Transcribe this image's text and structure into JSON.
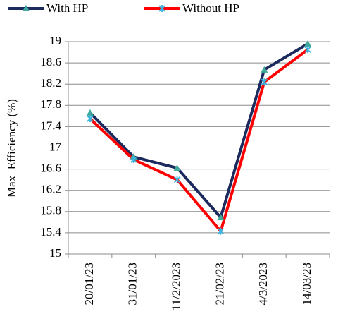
{
  "chart_data": {
    "type": "line",
    "y_label": "Max  Efficiency (%)",
    "categories": [
      "20/01/23",
      "31/01/23",
      "11/2/2023",
      "21/02/23",
      "4/3/2023",
      "14/03/23"
    ],
    "series": [
      {
        "name": "With HP",
        "color": "#1c2a5e",
        "marker_color": "#3fa89a",
        "marker": "triangle",
        "values": [
          17.66,
          16.83,
          16.62,
          15.69,
          18.47,
          18.96
        ]
      },
      {
        "name": "Without HP",
        "color": "#ff0000",
        "marker_color": "#3cb4e0",
        "marker": "star",
        "values": [
          17.55,
          16.78,
          16.4,
          15.43,
          18.24,
          18.85
        ]
      }
    ],
    "ylim": [
      15,
      19
    ],
    "yticks": [
      15,
      15.4,
      15.8,
      16.2,
      16.6,
      17,
      17.4,
      17.8,
      18.2,
      18.6,
      19
    ],
    "grid": true,
    "legend": "top"
  }
}
